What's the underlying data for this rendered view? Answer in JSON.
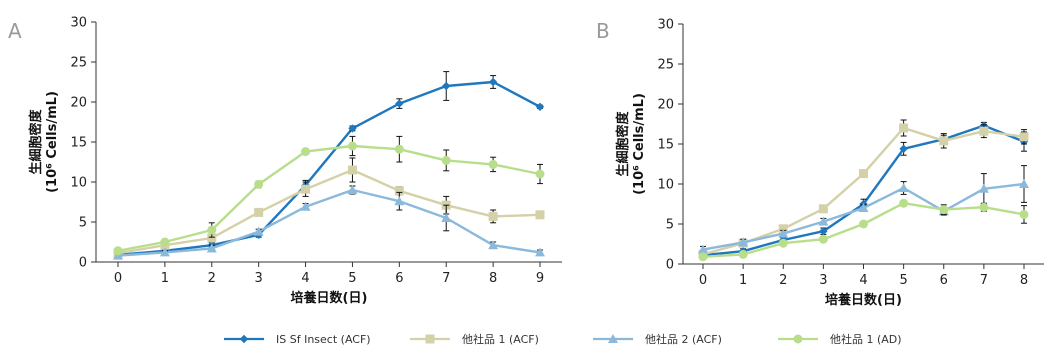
{
  "legend": {
    "entries": [
      {
        "label": "IS Sf Insect  (ACF)",
        "color": "#1f77bd",
        "marker": "diamond"
      },
      {
        "label": "他社品 1 (ACF)",
        "color": "#d4d0a8",
        "marker": "square"
      },
      {
        "label": "他社品 2  (ACF)",
        "color": "#8ab9db",
        "marker": "triangle"
      },
      {
        "label": "他社品 1 (AD)",
        "color": "#b8de8c",
        "marker": "circle"
      }
    ]
  },
  "chart_data": [
    {
      "panel": "A",
      "type": "line",
      "xlabel": "培養日数(日)",
      "ylabel": "生細胞密度",
      "ylabel_unit": "(10⁶ Cells/mL)",
      "x": [
        0,
        1,
        2,
        3,
        4,
        5,
        6,
        7,
        8,
        9
      ],
      "xlim": [
        0,
        9
      ],
      "ylim": [
        0,
        30
      ],
      "yticks": [
        0,
        5,
        10,
        15,
        20,
        25,
        30
      ],
      "series": [
        {
          "name": "IS Sf Insect  (ACF)",
          "color": "#1f77bd",
          "marker": "diamond",
          "values": [
            0.9,
            1.4,
            2.1,
            3.4,
            9.6,
            16.7,
            19.8,
            22.0,
            22.5,
            19.4
          ],
          "errors": [
            0.2,
            0.2,
            0.3,
            0.3,
            0.6,
            0.3,
            0.6,
            1.8,
            0.8,
            0.2
          ]
        },
        {
          "name": "他社品 1 (ACF)",
          "color": "#d4d0a8",
          "marker": "square",
          "values": [
            1.1,
            2.1,
            3.0,
            6.2,
            9.1,
            11.5,
            8.9,
            7.1,
            5.7,
            5.9
          ],
          "errors": [
            0.2,
            0.3,
            0.3,
            0.4,
            0.9,
            1.5,
            0.5,
            1.1,
            0.8,
            0.4
          ]
        },
        {
          "name": "他社品 2  (ACF)",
          "color": "#8ab9db",
          "marker": "triangle",
          "values": [
            0.8,
            1.2,
            1.7,
            3.8,
            6.9,
            9.0,
            7.6,
            5.5,
            2.1,
            1.2
          ],
          "errors": [
            0.2,
            0.2,
            0.4,
            0.3,
            0.4,
            0.5,
            1.1,
            1.6,
            0.4,
            0.3
          ]
        },
        {
          "name": "他社品 1 (AD)",
          "color": "#b8de8c",
          "marker": "circle",
          "values": [
            1.4,
            2.5,
            4.0,
            9.7,
            13.8,
            14.5,
            14.1,
            12.7,
            12.2,
            11.0
          ],
          "errors": [
            0.2,
            0.3,
            0.9,
            0.4,
            0.3,
            1.2,
            1.6,
            1.3,
            0.9,
            1.2
          ]
        }
      ]
    },
    {
      "panel": "B",
      "type": "line",
      "xlabel": "培養日数(日)",
      "ylabel": "生細胞密度",
      "ylabel_unit": "(10⁶ Cells/mL)",
      "x": [
        0,
        1,
        2,
        3,
        4,
        5,
        6,
        7,
        8
      ],
      "xlim": [
        0,
        8
      ],
      "ylim": [
        0,
        30
      ],
      "yticks": [
        0,
        5,
        10,
        15,
        20,
        25,
        30
      ],
      "series": [
        {
          "name": "IS Sf Insect  (ACF)",
          "color": "#1f77bd",
          "marker": "diamond",
          "values": [
            1.1,
            1.6,
            3.0,
            4.1,
            7.5,
            14.4,
            15.6,
            17.3,
            15.3
          ],
          "errors": [
            0.3,
            0.3,
            0.3,
            0.4,
            0.6,
            0.8,
            0.5,
            0.4,
            1.2
          ]
        },
        {
          "name": "他社品 1 (ACF)",
          "color": "#d4d0a8",
          "marker": "square",
          "values": [
            1.2,
            2.6,
            4.4,
            6.9,
            11.3,
            17.0,
            15.4,
            16.6,
            15.9
          ],
          "errors": [
            0.3,
            0.3,
            0.3,
            0.3,
            0.3,
            1.0,
            0.9,
            0.8,
            0.9
          ]
        },
        {
          "name": "他社品 2  (ACF)",
          "color": "#8ab9db",
          "marker": "triangle",
          "values": [
            1.8,
            2.7,
            3.8,
            5.3,
            7.0,
            9.5,
            6.6,
            9.4,
            10.0
          ],
          "errors": [
            0.4,
            0.4,
            0.4,
            0.4,
            0.4,
            0.8,
            0.5,
            1.9,
            2.3
          ]
        },
        {
          "name": "他社品 1 (AD)",
          "color": "#b8de8c",
          "marker": "circle",
          "values": [
            0.9,
            1.2,
            2.6,
            3.1,
            5.0,
            7.6,
            6.8,
            7.1,
            6.2
          ],
          "errors": [
            0.2,
            0.2,
            0.3,
            0.3,
            0.3,
            0.3,
            0.6,
            0.5,
            1.1
          ]
        }
      ]
    }
  ]
}
